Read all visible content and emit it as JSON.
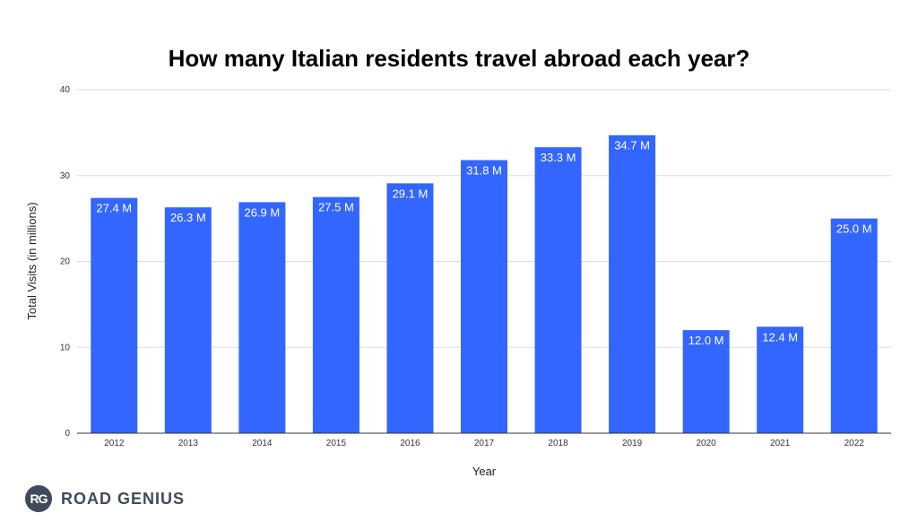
{
  "chart_data": {
    "type": "bar",
    "title": "How many Italian residents travel abroad each year?",
    "xlabel": "Year",
    "ylabel": "Total Visits (in millions)",
    "categories": [
      "2012",
      "2013",
      "2014",
      "2015",
      "2016",
      "2017",
      "2018",
      "2019",
      "2020",
      "2021",
      "2022"
    ],
    "values": [
      27.4,
      26.3,
      26.9,
      27.5,
      29.1,
      31.8,
      33.3,
      34.7,
      12.0,
      12.4,
      25.0
    ],
    "data_labels": [
      "27.4 M",
      "26.3 M",
      "26.9 M",
      "27.5 M",
      "29.1 M",
      "31.8 M",
      "33.3 M",
      "34.7 M",
      "12.0 M",
      "12.4 M",
      "25.0 M"
    ],
    "ylim": [
      0,
      40
    ],
    "yticks": [
      "0",
      "10",
      "20",
      "30",
      "40"
    ],
    "grid": true,
    "legend": "none",
    "bar_color": "#3366ff"
  },
  "logo": {
    "badge": "RG",
    "text": "ROAD GENIUS",
    "color": "#3f4a5c"
  }
}
